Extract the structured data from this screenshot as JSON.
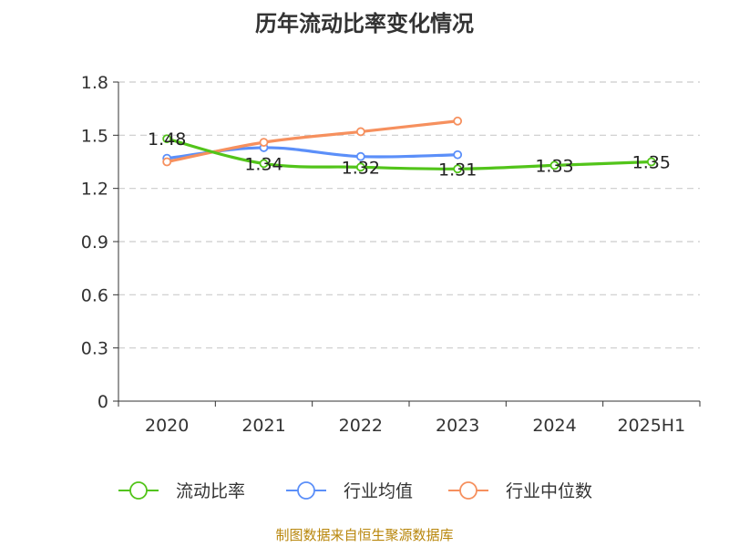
{
  "chart_data": {
    "type": "line",
    "title": "历年流动比率变化情况",
    "categories": [
      "2020",
      "2021",
      "2022",
      "2023",
      "2024",
      "2025H1"
    ],
    "ylim": [
      0,
      1.8
    ],
    "yticks": [
      "0",
      "0.3",
      "0.6",
      "0.9",
      "1.2",
      "1.5",
      "1.8"
    ],
    "grid": true,
    "legend_position": "bottom",
    "series": [
      {
        "name": "流动比率",
        "color": "#52c41a",
        "values": [
          1.48,
          1.34,
          1.32,
          1.31,
          1.33,
          1.35
        ],
        "labels": [
          "1.48",
          "1.34",
          "1.32",
          "1.31",
          "1.33",
          "1.35"
        ]
      },
      {
        "name": "行业均值",
        "color": "#5b8ff9",
        "values": [
          1.37,
          1.43,
          1.38,
          1.39,
          null,
          null
        ]
      },
      {
        "name": "行业中位数",
        "color": "#f6905e",
        "values": [
          1.35,
          1.46,
          1.52,
          1.58,
          null,
          null
        ]
      }
    ]
  },
  "footer": {
    "source": "制图数据来自恒生聚源数据库"
  }
}
